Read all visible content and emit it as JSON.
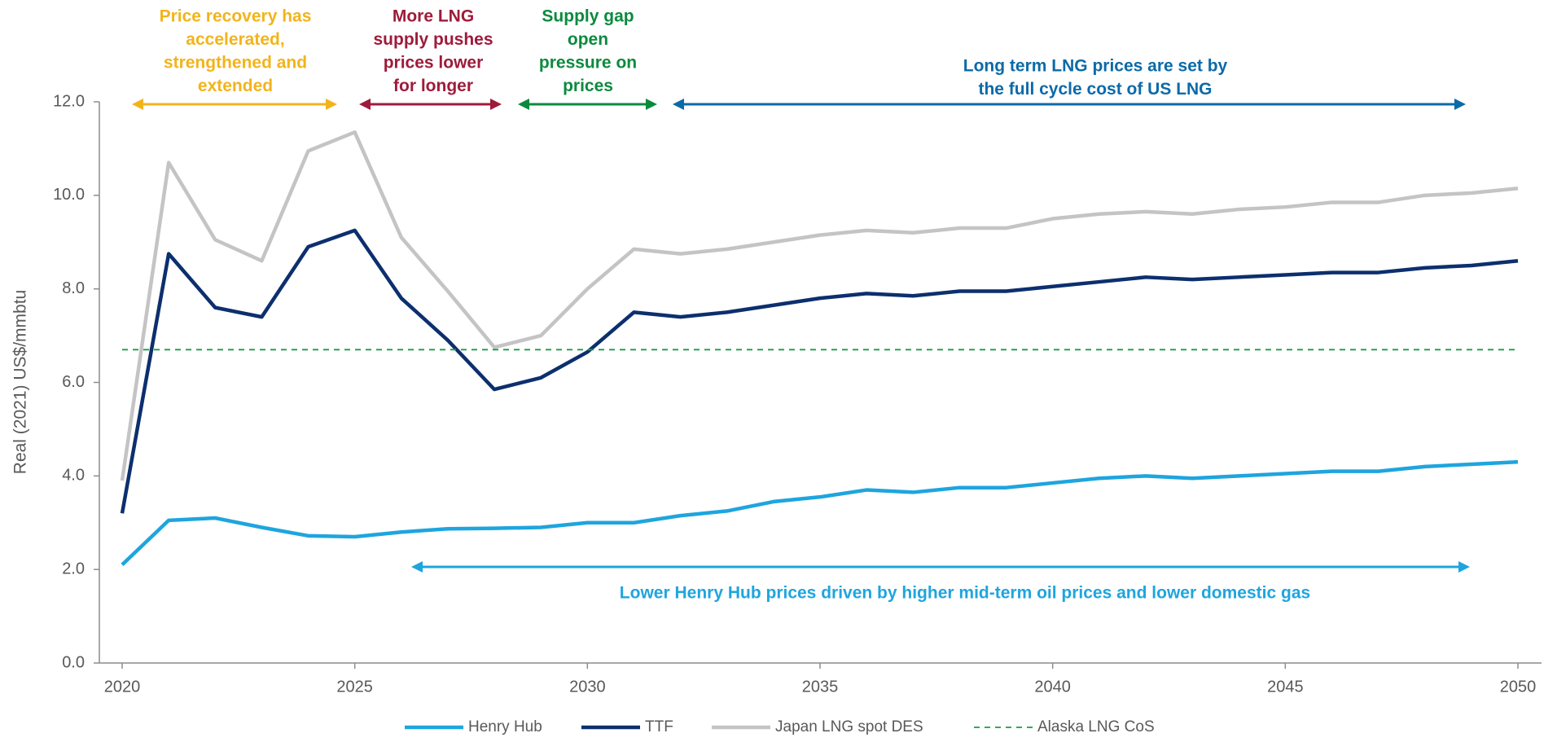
{
  "chart_data": {
    "type": "line",
    "y_label": "Real (2021) US$/mmbtu",
    "x": [
      2020,
      2021,
      2022,
      2023,
      2024,
      2025,
      2026,
      2027,
      2028,
      2029,
      2030,
      2031,
      2032,
      2033,
      2034,
      2035,
      2036,
      2037,
      2038,
      2039,
      2040,
      2041,
      2042,
      2043,
      2044,
      2045,
      2046,
      2047,
      2048,
      2049,
      2050
    ],
    "xlim": [
      2020,
      2050
    ],
    "xticks": [
      2020,
      2025,
      2030,
      2035,
      2040,
      2045,
      2050
    ],
    "ylim": [
      0,
      12
    ],
    "yticks": [
      {
        "value": 0,
        "label": "0.0"
      },
      {
        "value": 2,
        "label": "2.0"
      },
      {
        "value": 4,
        "label": "4.0"
      },
      {
        "value": 6,
        "label": "6.0"
      },
      {
        "value": 8,
        "label": "8.0"
      },
      {
        "value": 10,
        "label": "10.0"
      },
      {
        "value": 12,
        "label": "12.0"
      }
    ],
    "series": [
      {
        "name": "Henry Hub",
        "color": "#1ea5de",
        "dashed": false,
        "values": [
          2.1,
          3.05,
          3.1,
          2.9,
          2.72,
          2.7,
          2.8,
          2.87,
          2.88,
          2.9,
          3.0,
          3.0,
          3.15,
          3.25,
          3.45,
          3.55,
          3.7,
          3.65,
          3.75,
          3.75,
          3.85,
          3.95,
          4.0,
          3.95,
          4.0,
          4.05,
          4.1,
          4.1,
          4.2,
          4.25,
          4.3
        ]
      },
      {
        "name": "TTF",
        "color": "#0c2f6e",
        "dashed": false,
        "values": [
          3.2,
          8.75,
          7.6,
          7.4,
          8.9,
          9.25,
          7.8,
          6.9,
          5.85,
          6.1,
          6.65,
          7.5,
          7.4,
          7.5,
          7.65,
          7.8,
          7.9,
          7.85,
          7.95,
          7.95,
          8.05,
          8.15,
          8.25,
          8.2,
          8.25,
          8.3,
          8.35,
          8.35,
          8.45,
          8.5,
          8.6
        ]
      },
      {
        "name": "Japan LNG spot DES",
        "color": "#c4c4c4",
        "dashed": false,
        "values": [
          3.9,
          10.7,
          9.05,
          8.6,
          10.95,
          11.35,
          9.1,
          7.95,
          6.75,
          7.0,
          8.0,
          8.85,
          8.75,
          8.85,
          9.0,
          9.15,
          9.25,
          9.2,
          9.3,
          9.3,
          9.5,
          9.6,
          9.65,
          9.6,
          9.7,
          9.75,
          9.85,
          9.85,
          10.0,
          10.05,
          10.15
        ]
      },
      {
        "name": "Alaska LNG CoS",
        "color": "#1f9a4a",
        "dashed": true,
        "values": [
          6.7,
          6.7,
          6.7,
          6.7,
          6.7,
          6.7,
          6.7,
          6.7,
          6.7,
          6.7,
          6.7,
          6.7,
          6.7,
          6.7,
          6.7,
          6.7,
          6.7,
          6.7,
          6.7,
          6.7,
          6.7,
          6.7,
          6.7,
          6.7,
          6.7,
          6.7,
          6.7,
          6.7,
          6.7,
          6.7,
          6.7
        ]
      }
    ],
    "annotations": [
      {
        "lines": [
          "Price recovery has",
          "accelerated,",
          "strengthened and",
          "extended"
        ],
        "color": "#f2b41c"
      },
      {
        "lines": [
          "More LNG",
          "supply pushes",
          "prices lower",
          "for longer"
        ],
        "color": "#9e1b3b"
      },
      {
        "lines": [
          "Supply gap",
          "open",
          "pressure on",
          "prices"
        ],
        "color": "#0b8a3e"
      },
      {
        "lines": [
          "Long term LNG prices are set by",
          "the full cycle cost of US LNG"
        ],
        "color": "#0b6aa8"
      },
      {
        "lines": [
          "Lower Henry Hub prices driven by higher mid-term oil prices and lower domestic gas"
        ],
        "color": "#1ea5de"
      }
    ]
  }
}
